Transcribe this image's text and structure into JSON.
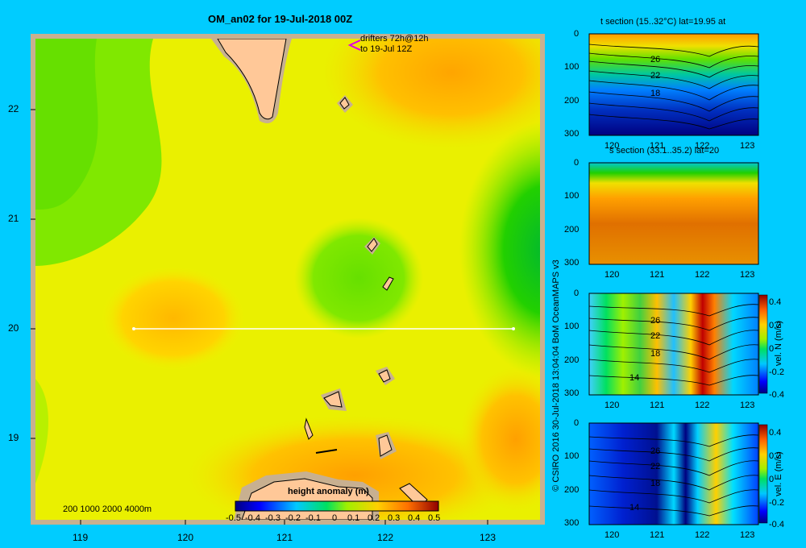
{
  "map": {
    "title": "OM_an02 for 19-Jul-2018 00Z",
    "drifters_line1": "drifters 72h@12h",
    "drifters_line2": "to 19-Jul 12Z",
    "depth_legend": "200  1000  2000  4000m",
    "colorbar_title": "height anomaly (m)",
    "colorbar_ticks": [
      "-0.5",
      "-0.4",
      "-0.3",
      "-0.2",
      "-0.1",
      "0",
      "0.1",
      "0.2",
      "0.3",
      "0.4",
      "0.5"
    ],
    "lat_ticks": [
      "22",
      "21",
      "20",
      "19"
    ],
    "lon_ticks": [
      "119",
      "120",
      "121",
      "122",
      "123"
    ],
    "section_line": {
      "lat": 20,
      "lon_start": 119.5,
      "lon_end": 123.2
    }
  },
  "sections": [
    {
      "title": "t section (15..32°C) lat=19.95 at",
      "y_ticks": [
        "0",
        "100",
        "200",
        "300"
      ],
      "x_ticks": [
        "120",
        "121",
        "122",
        "123"
      ],
      "contour_labels": [
        "26",
        "22",
        "18"
      ]
    },
    {
      "title": "s section (33.1..35.2) lat=20",
      "y_ticks": [
        "0",
        "100",
        "200",
        "300"
      ],
      "x_ticks": [
        "120",
        "121",
        "122",
        "123"
      ]
    },
    {
      "title": "",
      "y_ticks": [
        "0",
        "100",
        "200",
        "300"
      ],
      "x_ticks": [
        "120",
        "121",
        "122",
        "123"
      ],
      "contour_labels": [
        "26",
        "22",
        "18",
        "14"
      ],
      "colorbar_ticks": [
        "0.4",
        "0.2",
        "0",
        "-0.2",
        "-0.4"
      ],
      "colorbar_label": "vel. N (m/s)"
    },
    {
      "title": "",
      "y_ticks": [
        "0",
        "100",
        "200",
        "300"
      ],
      "x_ticks": [
        "120",
        "121",
        "122",
        "123"
      ],
      "contour_labels": [
        "26",
        "22",
        "18",
        "14"
      ],
      "colorbar_ticks": [
        "0.4",
        "0.2",
        "0",
        "-0.2",
        "-0.4"
      ],
      "colorbar_label": "vel. E (m/s)"
    }
  ],
  "credit": "© CSIRO 2016   30-Jul-2018 13:04:04 BoM OceanMAPS v3"
}
